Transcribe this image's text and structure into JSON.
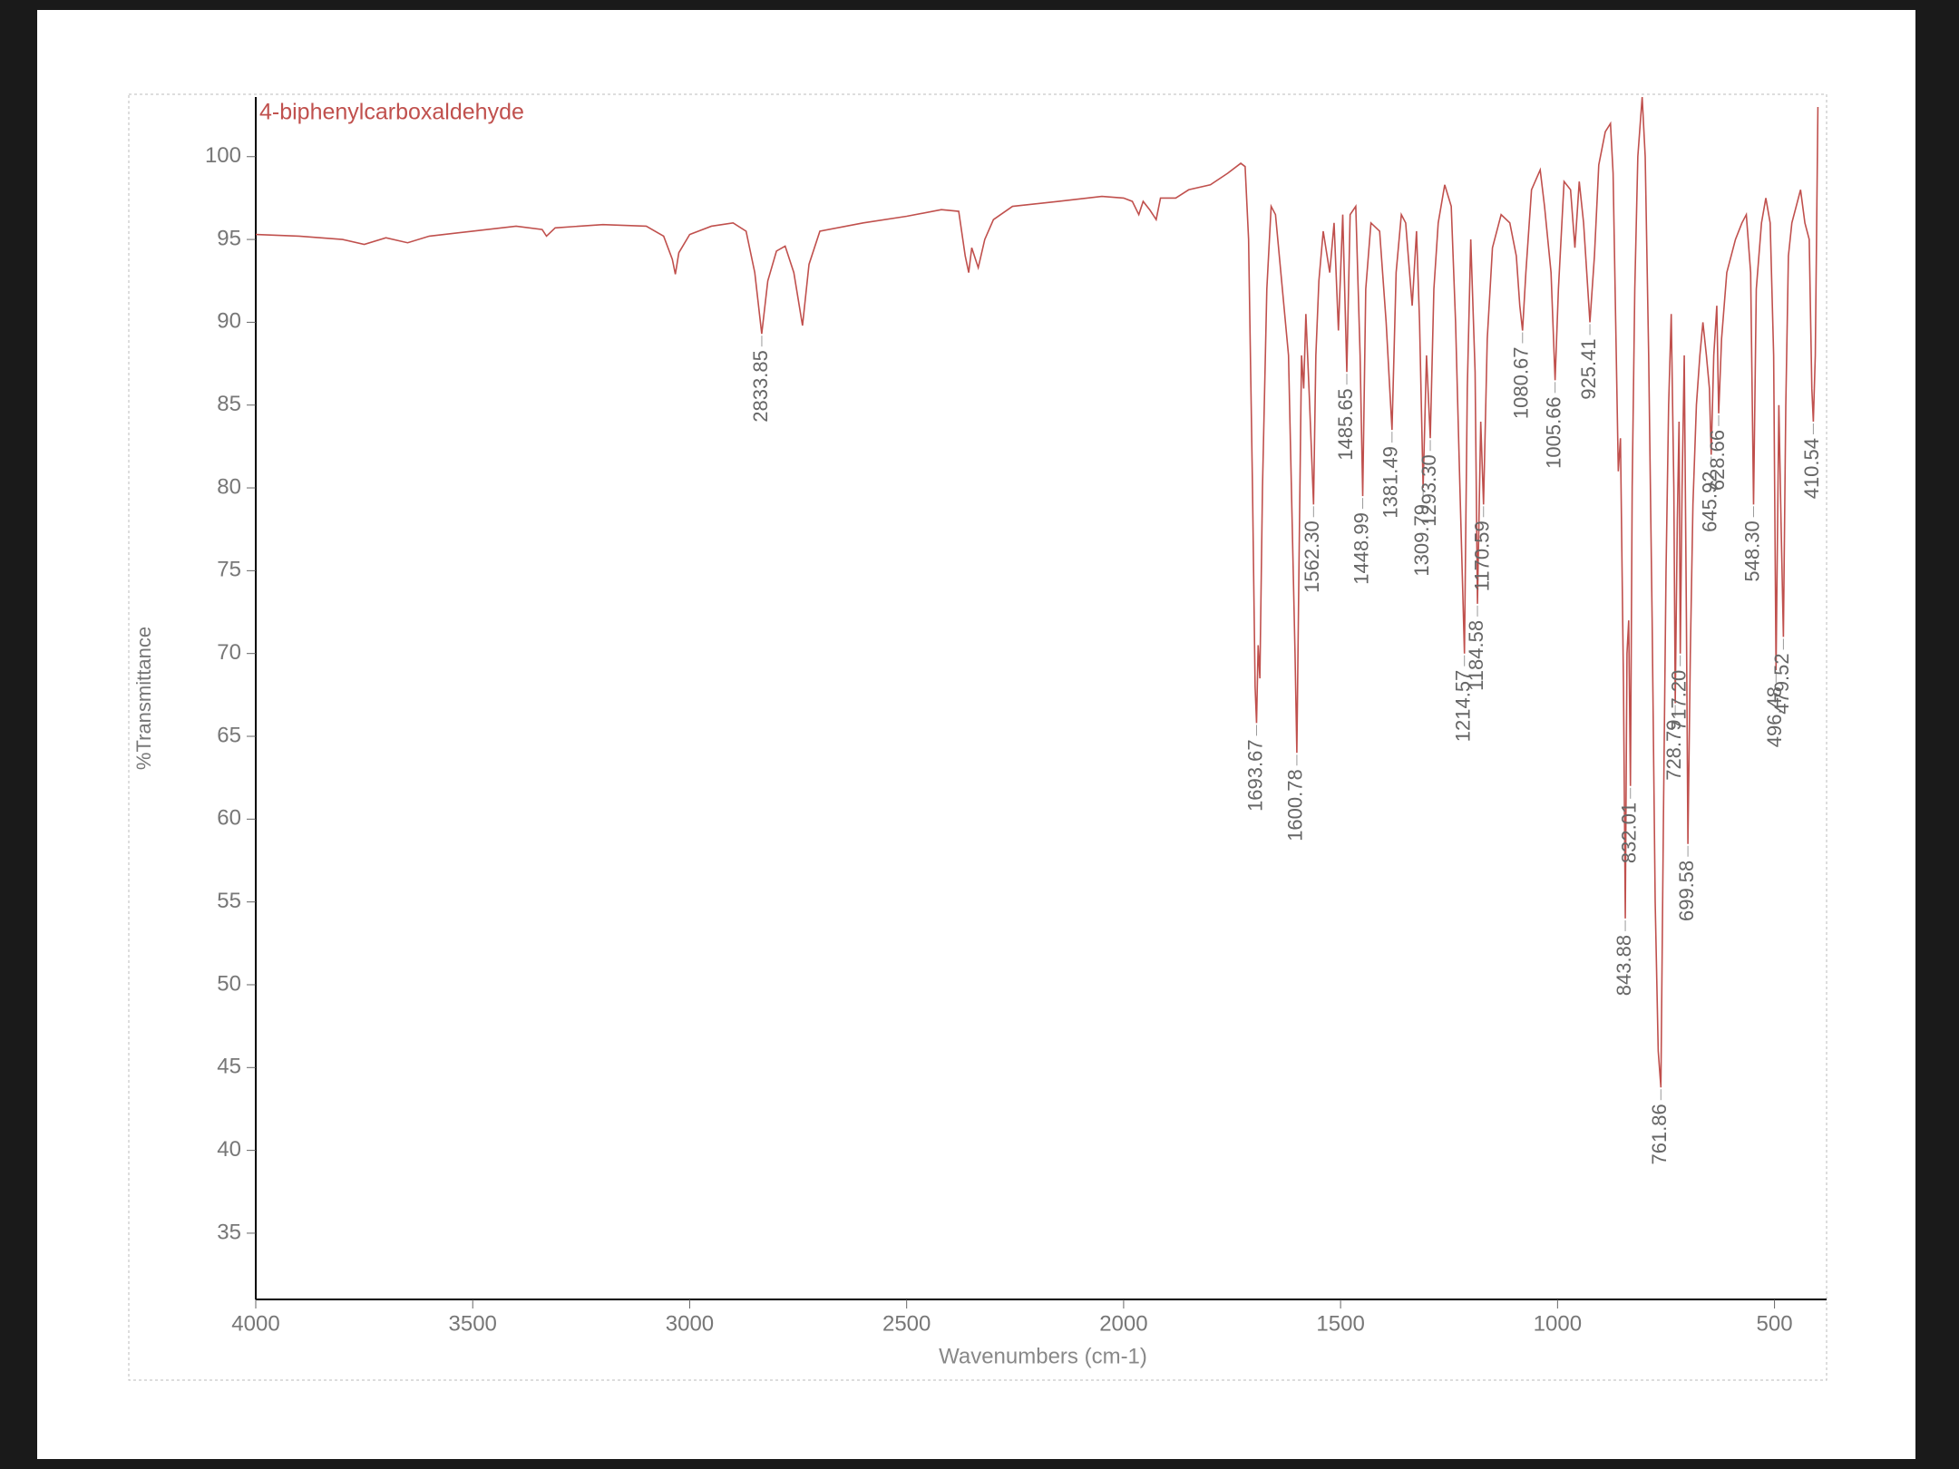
{
  "chart_data": {
    "type": "line",
    "title": "4-biphenylcarboxaldehyde",
    "xlabel": "Wavenumbers (cm-1)",
    "ylabel": "%Transmittance",
    "xlim": [
      4000,
      380
    ],
    "ylim": [
      31,
      103.6
    ],
    "xticks": [
      4000,
      3500,
      3000,
      2500,
      2000,
      1500,
      1000,
      500
    ],
    "yticks": [
      35,
      40,
      45,
      50,
      55,
      60,
      65,
      70,
      75,
      80,
      85,
      90,
      95,
      100
    ],
    "x": [
      4000,
      3900,
      3800,
      3750,
      3700,
      3650,
      3600,
      3500,
      3400,
      3340,
      3330,
      3310,
      3200,
      3100,
      3060,
      3040,
      3033,
      3025,
      3000,
      2950,
      2900,
      2870,
      2850,
      2834,
      2820,
      2800,
      2780,
      2760,
      2740,
      2725,
      2700,
      2600,
      2500,
      2420,
      2380,
      2365,
      2357,
      2350,
      2335,
      2320,
      2300,
      2256,
      2150,
      2050,
      2000,
      1980,
      1965,
      1955,
      1940,
      1925,
      1915,
      1880,
      1850,
      1800,
      1760,
      1730,
      1720,
      1712,
      1703,
      1697,
      1693.67,
      1690,
      1686,
      1680,
      1670,
      1660,
      1650,
      1620,
      1605,
      1600.78,
      1596,
      1590,
      1585,
      1580,
      1572,
      1562.3,
      1557,
      1550,
      1540,
      1525,
      1515,
      1505,
      1495,
      1485.65,
      1478,
      1465,
      1455,
      1448.99,
      1442,
      1430,
      1410,
      1395,
      1381.49,
      1372,
      1360,
      1350,
      1335,
      1325,
      1318,
      1309.79,
      1302,
      1293.3,
      1285,
      1275,
      1260,
      1245,
      1235,
      1225,
      1214.57,
      1208,
      1200,
      1190,
      1184.58,
      1177,
      1170.59,
      1162,
      1150,
      1130,
      1110,
      1095,
      1087,
      1080.67,
      1073,
      1060,
      1040,
      1030,
      1015,
      1005.66,
      998,
      985,
      970,
      960,
      950,
      940,
      925.41,
      915,
      905,
      890,
      878,
      872,
      866,
      860,
      855,
      848,
      843.88,
      840,
      836,
      832.01,
      828,
      822,
      815,
      805,
      798,
      790,
      782,
      775,
      768,
      761.86,
      756,
      750,
      744,
      738,
      732,
      728.79,
      724,
      720,
      717.2,
      713,
      708,
      703,
      699.58,
      694,
      688,
      680,
      672,
      665,
      657,
      650,
      645.92,
      640,
      633,
      628.66,
      622,
      610,
      590,
      575,
      565,
      555,
      548.3,
      542,
      530,
      520,
      510,
      502,
      496.48,
      490,
      485,
      479.52,
      474,
      468,
      460,
      450,
      440,
      430,
      420,
      414,
      410.54,
      406,
      400
    ],
    "series": [
      {
        "color": "#c0504d",
        "values": [
          95.3,
          95.2,
          95.0,
          94.7,
          95.1,
          94.8,
          95.2,
          95.5,
          95.8,
          95.6,
          95.2,
          95.7,
          95.9,
          95.8,
          95.2,
          93.8,
          92.9,
          94.2,
          95.3,
          95.8,
          96.0,
          95.5,
          93,
          89.3,
          92.5,
          94.3,
          94.6,
          93,
          89.8,
          93.5,
          95.5,
          96.0,
          96.4,
          96.8,
          96.7,
          94,
          93,
          94.5,
          93.3,
          95,
          96.2,
          97.0,
          97.3,
          97.6,
          97.5,
          97.3,
          96.5,
          97.3,
          96.8,
          96.2,
          97.5,
          97.5,
          98.0,
          98.3,
          99.0,
          99.6,
          99.4,
          95,
          80,
          68,
          65.8,
          70.5,
          68.5,
          80,
          92,
          97,
          96.5,
          88,
          70,
          64,
          75,
          88,
          86,
          90.5,
          85.5,
          79,
          88,
          92.5,
          95.5,
          93,
          96,
          89.5,
          96.5,
          87,
          96.5,
          97,
          88,
          79.5,
          92,
          96,
          95.5,
          90,
          83.5,
          93,
          96.5,
          96,
          91,
          95.5,
          90,
          80,
          88,
          83,
          92,
          96,
          98.3,
          97,
          90,
          80,
          70,
          86,
          95,
          87,
          73,
          84,
          79,
          89,
          94.5,
          96.5,
          96,
          94,
          91,
          89.5,
          93,
          98,
          99.2,
          97,
          93,
          86.5,
          92,
          98.5,
          98,
          94.5,
          98.5,
          96,
          90,
          94,
          99.5,
          101.5,
          102,
          99,
          90,
          81,
          83,
          68,
          54,
          70,
          72,
          62,
          80,
          92,
          100,
          103.6,
          100,
          88,
          72,
          55,
          46,
          43.8,
          60,
          75,
          85,
          90.5,
          80,
          67,
          78,
          84,
          70,
          80,
          88,
          72,
          58.5,
          70,
          79,
          85,
          88,
          90,
          88,
          86,
          82,
          88,
          91,
          84.5,
          89,
          93,
          95,
          96,
          96.5,
          93,
          79,
          92,
          96,
          97.5,
          96,
          88,
          69,
          85,
          78,
          71,
          85,
          94,
          96,
          97,
          98,
          96,
          95,
          86,
          84,
          88,
          103
        ]
      }
    ],
    "peaks": [
      {
        "x": 2833.85,
        "y": 89.3,
        "label": "2833.85"
      },
      {
        "x": 1693.67,
        "y": 65.8,
        "label": "1693.67"
      },
      {
        "x": 1600.78,
        "y": 64,
        "label": "1600.78"
      },
      {
        "x": 1562.3,
        "y": 79,
        "label": "1562.30"
      },
      {
        "x": 1485.65,
        "y": 87,
        "label": "1485.65"
      },
      {
        "x": 1448.99,
        "y": 79.5,
        "label": "1448.99"
      },
      {
        "x": 1381.49,
        "y": 83.5,
        "label": "1381.49"
      },
      {
        "x": 1309.79,
        "y": 80,
        "label": "1309.79"
      },
      {
        "x": 1293.3,
        "y": 83,
        "label": "1293.30"
      },
      {
        "x": 1214.57,
        "y": 70,
        "label": "1214.57"
      },
      {
        "x": 1184.58,
        "y": 73,
        "label": "1184.58"
      },
      {
        "x": 1170.59,
        "y": 79,
        "label": "1170.59"
      },
      {
        "x": 1080.67,
        "y": 89.5,
        "label": "1080.67"
      },
      {
        "x": 1005.66,
        "y": 86.5,
        "label": "1005.66"
      },
      {
        "x": 925.41,
        "y": 90,
        "label": "925.41"
      },
      {
        "x": 843.88,
        "y": 54,
        "label": "843.88"
      },
      {
        "x": 832.01,
        "y": 62,
        "label": "832.01"
      },
      {
        "x": 761.86,
        "y": 43.8,
        "label": "761.86"
      },
      {
        "x": 728.79,
        "y": 67,
        "label": "728.79"
      },
      {
        "x": 717.2,
        "y": 70,
        "label": "717.20"
      },
      {
        "x": 699.58,
        "y": 58.5,
        "label": "699.58"
      },
      {
        "x": 645.92,
        "y": 82,
        "label": "645.92"
      },
      {
        "x": 628.66,
        "y": 84.5,
        "label": "628.66"
      },
      {
        "x": 548.3,
        "y": 79,
        "label": "548.30"
      },
      {
        "x": 496.48,
        "y": 69,
        "label": "496.48"
      },
      {
        "x": 479.52,
        "y": 71,
        "label": "479.52"
      },
      {
        "x": 410.54,
        "y": 84,
        "label": "410.54"
      }
    ]
  }
}
